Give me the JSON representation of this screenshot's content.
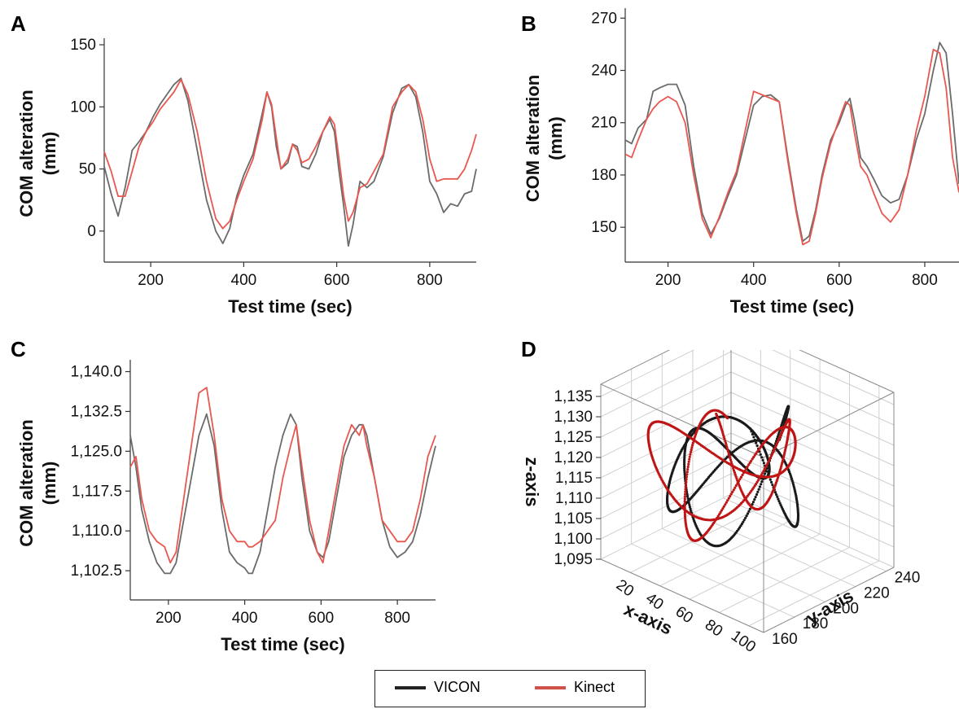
{
  "panels": {
    "a": "A",
    "b": "B",
    "c": "C",
    "d": "D"
  },
  "colors": {
    "vicon": "#6b6b6b",
    "kinect": "#e8584f",
    "vicon_3d": "#1a1a1a",
    "kinect_3d": "#c01515",
    "grid": "#cfcfcf"
  },
  "legend": {
    "vicon": "VICON",
    "kinect": "Kinect",
    "vicon_color": "#222222",
    "kinect_color": "#d0504a"
  },
  "chart_data": [
    {
      "id": "A",
      "type": "line",
      "xlabel": "Test time (sec)",
      "ylabel": [
        "COM alteration",
        "(mm)"
      ],
      "xlim": [
        100,
        900
      ],
      "ylim": [
        -25,
        150
      ],
      "xticks": [
        200,
        400,
        600,
        800
      ],
      "yticks": [
        0,
        50,
        100,
        150
      ],
      "ytick_labels": [
        "0",
        "50",
        "100",
        "150"
      ],
      "series": [
        {
          "name": "VICON",
          "x": [
            100,
            115,
            130,
            145,
            160,
            175,
            190,
            205,
            220,
            235,
            250,
            265,
            280,
            300,
            320,
            340,
            355,
            370,
            385,
            400,
            420,
            440,
            450,
            460,
            470,
            480,
            495,
            505,
            515,
            525,
            540,
            555,
            570,
            585,
            595,
            605,
            615,
            625,
            635,
            650,
            665,
            680,
            700,
            720,
            740,
            755,
            770,
            785,
            800,
            815,
            830,
            845,
            860,
            875,
            890,
            900
          ],
          "y": [
            52,
            30,
            12,
            35,
            65,
            72,
            80,
            92,
            102,
            110,
            118,
            123,
            105,
            65,
            25,
            0,
            -10,
            2,
            28,
            45,
            62,
            95,
            112,
            100,
            68,
            50,
            55,
            70,
            68,
            52,
            50,
            62,
            80,
            90,
            80,
            48,
            20,
            -12,
            5,
            40,
            35,
            40,
            60,
            95,
            115,
            118,
            108,
            80,
            40,
            30,
            15,
            22,
            20,
            30,
            32,
            50
          ]
        },
        {
          "name": "Kinect",
          "x": [
            100,
            115,
            130,
            145,
            160,
            175,
            190,
            205,
            220,
            235,
            250,
            265,
            280,
            300,
            320,
            340,
            355,
            370,
            385,
            400,
            420,
            440,
            450,
            460,
            470,
            480,
            495,
            505,
            515,
            525,
            540,
            555,
            570,
            585,
            595,
            605,
            615,
            625,
            635,
            650,
            665,
            680,
            700,
            720,
            740,
            755,
            770,
            785,
            800,
            815,
            830,
            845,
            860,
            875,
            890,
            900
          ],
          "y": [
            64,
            48,
            28,
            28,
            48,
            68,
            80,
            88,
            98,
            105,
            112,
            122,
            110,
            80,
            40,
            10,
            2,
            8,
            25,
            40,
            58,
            90,
            112,
            102,
            75,
            50,
            58,
            70,
            65,
            55,
            58,
            68,
            80,
            92,
            86,
            58,
            28,
            8,
            15,
            35,
            38,
            48,
            62,
            100,
            112,
            118,
            112,
            90,
            58,
            40,
            42,
            42,
            42,
            50,
            65,
            78
          ]
        }
      ]
    },
    {
      "id": "B",
      "type": "line",
      "xlabel": "Test time (sec)",
      "ylabel": [
        "COM alteration",
        "(mm)"
      ],
      "xlim": [
        100,
        880
      ],
      "ylim": [
        130,
        272
      ],
      "xticks": [
        200,
        400,
        600,
        800
      ],
      "yticks": [
        150,
        180,
        210,
        240,
        270
      ],
      "ytick_labels": [
        "150",
        "180",
        "210",
        "240",
        "270"
      ],
      "series": [
        {
          "name": "VICON",
          "x": [
            100,
            115,
            130,
            150,
            165,
            180,
            200,
            220,
            240,
            260,
            280,
            300,
            320,
            340,
            360,
            380,
            400,
            420,
            440,
            460,
            480,
            500,
            515,
            530,
            545,
            560,
            580,
            600,
            615,
            625,
            635,
            650,
            665,
            680,
            700,
            720,
            740,
            760,
            780,
            800,
            820,
            835,
            850,
            865,
            880
          ],
          "y": [
            200,
            198,
            207,
            212,
            228,
            230,
            232,
            232,
            220,
            185,
            158,
            146,
            155,
            168,
            180,
            200,
            220,
            225,
            226,
            222,
            190,
            160,
            142,
            145,
            160,
            180,
            200,
            210,
            220,
            224,
            212,
            190,
            185,
            178,
            168,
            164,
            166,
            180,
            200,
            215,
            240,
            256,
            250,
            215,
            175
          ]
        },
        {
          "name": "Kinect",
          "x": [
            100,
            115,
            130,
            150,
            165,
            180,
            200,
            220,
            240,
            260,
            280,
            300,
            320,
            340,
            360,
            380,
            400,
            420,
            440,
            460,
            480,
            500,
            515,
            530,
            545,
            560,
            580,
            600,
            615,
            625,
            635,
            650,
            665,
            680,
            700,
            720,
            740,
            760,
            780,
            800,
            820,
            835,
            850,
            865,
            880
          ],
          "y": [
            192,
            190,
            200,
            212,
            218,
            222,
            225,
            222,
            210,
            180,
            155,
            144,
            156,
            170,
            182,
            205,
            228,
            226,
            224,
            222,
            188,
            158,
            140,
            142,
            158,
            178,
            198,
            212,
            222,
            220,
            205,
            185,
            180,
            170,
            158,
            153,
            160,
            180,
            205,
            225,
            252,
            250,
            230,
            190,
            170
          ]
        }
      ]
    },
    {
      "id": "C",
      "type": "line",
      "xlabel": "Test time (sec)",
      "ylabel": [
        "COM alteration",
        "(mm)"
      ],
      "xlim": [
        100,
        900
      ],
      "ylim": [
        1097,
        1141
      ],
      "xticks": [
        200,
        400,
        600,
        800
      ],
      "yticks": [
        1102.5,
        1110.0,
        1117.5,
        1125.0,
        1132.5,
        1140.0
      ],
      "ytick_labels": [
        "1,102.5",
        "1,110.0",
        "1,117.5",
        "1,125.0",
        "1,132.5",
        "1,140.0"
      ],
      "series": [
        {
          "name": "VICON",
          "x": [
            100,
            115,
            130,
            150,
            170,
            190,
            205,
            220,
            240,
            260,
            280,
            300,
            320,
            340,
            360,
            380,
            400,
            410,
            420,
            440,
            460,
            480,
            500,
            520,
            535,
            550,
            570,
            590,
            605,
            620,
            640,
            660,
            680,
            700,
            710,
            720,
            740,
            760,
            780,
            800,
            820,
            840,
            860,
            880,
            900
          ],
          "y": [
            1128,
            1122,
            1114,
            1108,
            1104,
            1102,
            1102,
            1104,
            1112,
            1120,
            1128,
            1132,
            1126,
            1114,
            1106,
            1104,
            1103,
            1102,
            1102,
            1106,
            1114,
            1122,
            1128,
            1132,
            1130,
            1120,
            1110,
            1106,
            1105,
            1108,
            1116,
            1124,
            1128,
            1130,
            1130,
            1128,
            1120,
            1112,
            1107,
            1105,
            1106,
            1108,
            1113,
            1120,
            1126
          ]
        },
        {
          "name": "Kinect",
          "x": [
            100,
            115,
            130,
            150,
            170,
            190,
            205,
            220,
            240,
            260,
            280,
            300,
            320,
            340,
            360,
            380,
            400,
            410,
            420,
            440,
            460,
            480,
            500,
            520,
            535,
            550,
            570,
            590,
            605,
            620,
            640,
            660,
            680,
            700,
            710,
            720,
            740,
            760,
            780,
            800,
            820,
            840,
            860,
            880,
            900
          ],
          "y": [
            1122,
            1124,
            1116,
            1110,
            1108,
            1107,
            1104,
            1106,
            1116,
            1126,
            1136,
            1137,
            1128,
            1116,
            1110,
            1108,
            1108,
            1107,
            1107,
            1108,
            1110,
            1112,
            1120,
            1126,
            1130,
            1122,
            1112,
            1106,
            1104,
            1110,
            1118,
            1126,
            1130,
            1128,
            1130,
            1126,
            1120,
            1112,
            1110,
            1108,
            1108,
            1110,
            1116,
            1124,
            1128
          ]
        }
      ]
    },
    {
      "id": "D",
      "type": "scatter",
      "dimensions": 3,
      "xlabel": "x-axis",
      "ylabel": "y-axis",
      "zlabel": "z-axis",
      "xlim": [
        0,
        110
      ],
      "ylim": [
        160,
        245
      ],
      "zlim": [
        1095,
        1138
      ],
      "xticks": [
        20,
        40,
        60,
        80,
        100
      ],
      "yticks": [
        160,
        180,
        200,
        220,
        240
      ],
      "zticks": [
        1095,
        1100,
        1105,
        1110,
        1115,
        1120,
        1125,
        1130,
        1135
      ],
      "ztick_labels": [
        "1,095",
        "1,100",
        "1,105",
        "1,110",
        "1,115",
        "1,120",
        "1,125",
        "1,130",
        "1,135"
      ],
      "series": [
        {
          "name": "VICON",
          "x": [
            20,
            100
          ],
          "y": [
            160,
            240
          ],
          "z": [
            1100,
            1132
          ]
        },
        {
          "name": "Kinect",
          "x": [
            20,
            100
          ],
          "y": [
            160,
            240
          ],
          "z": [
            1100,
            1137
          ]
        }
      ]
    }
  ]
}
